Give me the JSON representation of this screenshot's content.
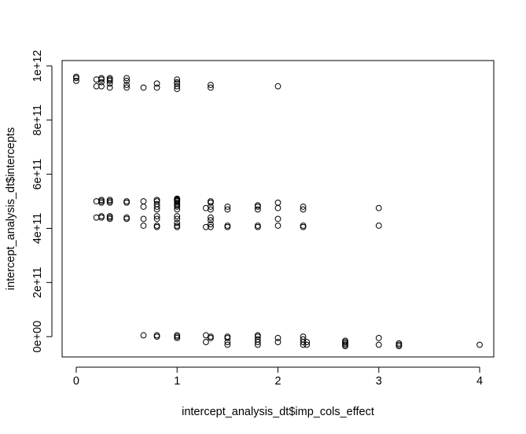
{
  "chart_data": {
    "type": "scatter",
    "title": "",
    "xlabel": "intercept_analysis_dt$imp_cols_effect",
    "ylabel": "intercept_analysis_dt$intercepts",
    "xlim": [
      -0.14,
      4.14
    ],
    "ylim": [
      -75000000000.0,
      1020000000000.0
    ],
    "x_ticks": [
      0,
      1,
      2,
      3,
      4
    ],
    "x_tick_labels": [
      "0",
      "1",
      "2",
      "3",
      "4"
    ],
    "y_ticks": [
      0,
      200000000000.0,
      400000000000.0,
      600000000000.0,
      800000000000.0,
      1000000000000.0
    ],
    "y_tick_labels": [
      "0e+00",
      "2e+11",
      "4e+11",
      "6e+11",
      "8e+11",
      "1e+12"
    ],
    "grid": false,
    "legend": "none",
    "marker": "open-circle",
    "series": [
      {
        "x": [
          0,
          0,
          0,
          0.2,
          0.2,
          0.25,
          0.25,
          0.25,
          0.25,
          0.333,
          0.333,
          0.333,
          0.333,
          0.333,
          0.5,
          0.5,
          0.5,
          0.5,
          0.667,
          0.8,
          0.8,
          1,
          1,
          1,
          1,
          1,
          1.333,
          1.333,
          2,
          0.2,
          0.2,
          0.25,
          0.25,
          0.25,
          0.25,
          0.25,
          0.333,
          0.333,
          0.333,
          0.333,
          0.333,
          0.333,
          0.5,
          0.5,
          0.5,
          0.5,
          0.667,
          0.667,
          0.667,
          0.667,
          0.8,
          0.8,
          0.8,
          0.8,
          0.8,
          0.8,
          0.8,
          0.8,
          0.8,
          1,
          1,
          1,
          1,
          1,
          1,
          1,
          1,
          1,
          1,
          1,
          1,
          1,
          1,
          1,
          1.286,
          1.286,
          1.333,
          1.333,
          1.333,
          1.333,
          1.333,
          1.333,
          1.333,
          1.333,
          1.5,
          1.5,
          1.5,
          1.5,
          1.8,
          1.8,
          1.8,
          1.8,
          1.8,
          2,
          2,
          2,
          2,
          2.25,
          2.25,
          2.25,
          2.25,
          3,
          3,
          0.667,
          0.8,
          0.8,
          1,
          1,
          1,
          1.286,
          1.286,
          1.333,
          1.333,
          1.5,
          1.5,
          1.5,
          1.5,
          1.8,
          1.8,
          1.8,
          1.8,
          1.8,
          2,
          2,
          2.25,
          2.25,
          2.25,
          2.25,
          2.286,
          2.286,
          2.667,
          2.667,
          2.667,
          2.667,
          2.667,
          3,
          3,
          3.2,
          3.2,
          3.2,
          4
        ],
        "y": [
          945000000000.0,
          955000000000.0,
          960000000000.0,
          925000000000.0,
          950000000000.0,
          925000000000.0,
          940000000000.0,
          950000000000.0,
          955000000000.0,
          920000000000.0,
          935000000000.0,
          945000000000.0,
          950000000000.0,
          955000000000.0,
          920000000000.0,
          930000000000.0,
          945000000000.0,
          955000000000.0,
          920000000000.0,
          920000000000.0,
          935000000000.0,
          915000000000.0,
          925000000000.0,
          935000000000.0,
          940000000000.0,
          950000000000.0,
          920000000000.0,
          930000000000.0,
          925000000000.0,
          440000000000.0,
          500000000000.0,
          440000000000.0,
          445000000000.0,
          495000000000.0,
          500000000000.0,
          505000000000.0,
          435000000000.0,
          440000000000.0,
          445000000000.0,
          495000000000.0,
          500000000000.0,
          505000000000.0,
          435000000000.0,
          440000000000.0,
          495000000000.0,
          500000000000.0,
          410000000000.0,
          435000000000.0,
          480000000000.0,
          500000000000.0,
          405000000000.0,
          410000000000.0,
          435000000000.0,
          445000000000.0,
          470000000000.0,
          480000000000.0,
          490000000000.0,
          500000000000.0,
          505000000000.0,
          405000000000.0,
          410000000000.0,
          420000000000.0,
          435000000000.0,
          445000000000.0,
          470000000000.0,
          480000000000.0,
          485000000000.0,
          490000000000.0,
          495000000000.0,
          500000000000.0,
          503000000000.0,
          505000000000.0,
          508000000000.0,
          510000000000.0,
          405000000000.0,
          475000000000.0,
          405000000000.0,
          415000000000.0,
          430000000000.0,
          440000000000.0,
          470000000000.0,
          480000000000.0,
          495000000000.0,
          500000000000.0,
          405000000000.0,
          410000000000.0,
          470000000000.0,
          480000000000.0,
          405000000000.0,
          410000000000.0,
          470000000000.0,
          480000000000.0,
          485000000000.0,
          410000000000.0,
          435000000000.0,
          475000000000.0,
          495000000000.0,
          405000000000.0,
          410000000000.0,
          470000000000.0,
          480000000000.0,
          410000000000.0,
          475000000000.0,
          5000000000.0,
          0,
          5000000000.0,
          -5000000000.0,
          0,
          5000000000.0,
          -20000000000.0,
          5000000000.0,
          -5000000000.0,
          0,
          -30000000000.0,
          -20000000000.0,
          -5000000000.0,
          0,
          -30000000000.0,
          -20000000000.0,
          -10000000000.0,
          0,
          5000000000.0,
          -20000000000.0,
          -5000000000.0,
          -30000000000.0,
          -20000000000.0,
          -10000000000.0,
          0,
          -30000000000.0,
          -20000000000.0,
          -35000000000.0,
          -30000000000.0,
          -25000000000.0,
          -20000000000.0,
          -15000000000.0,
          -30000000000.0,
          -5000000000.0,
          -35000000000.0,
          -30000000000.0,
          -25000000000.0,
          -30000000000.0
        ]
      }
    ]
  }
}
